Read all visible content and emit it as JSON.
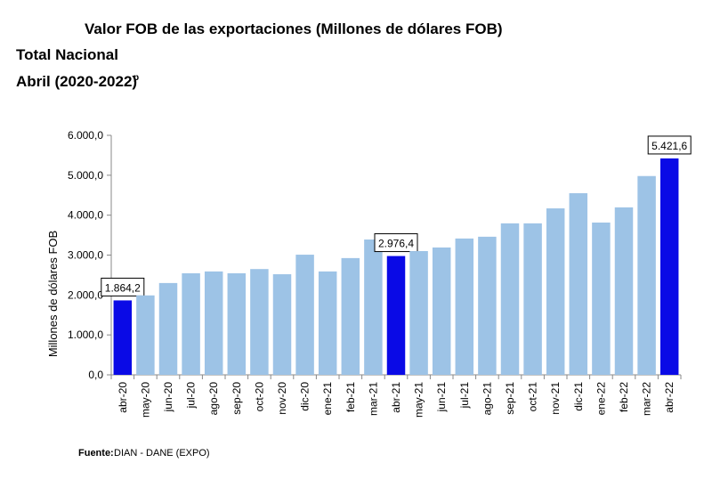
{
  "chart_data": {
    "type": "bar",
    "title": "Valor FOB de las exportaciones (Millones de dólares FOB)",
    "subtitle": "Total Nacional",
    "period": "Abril (2020-2022)",
    "period_mark": "p",
    "y_label": "Millones de dólares FOB",
    "source_label": "Fuente:",
    "source": "DIAN  - DANE (EXPO)",
    "categories": [
      "abr-20",
      "may-20",
      "jun-20",
      "jul-20",
      "ago-20",
      "sep-20",
      "oct-20",
      "nov-20",
      "dic-20",
      "ene-21",
      "feb-21",
      "mar-21",
      "abr-21",
      "may-21",
      "jun-21",
      "jul-21",
      "ago-21",
      "sep-21",
      "oct-21",
      "nov-21",
      "dic-21",
      "ene-22",
      "feb-22",
      "mar-22",
      "abr-22"
    ],
    "values": [
      1864.2,
      1990,
      2300,
      2545,
      2590,
      2545,
      2650,
      2520,
      3010,
      2590,
      2925,
      3390,
      2976.4,
      3100,
      3190,
      3415,
      3460,
      3795,
      3795,
      4170,
      4550,
      3815,
      4195,
      4980,
      5421.6
    ],
    "value_labels": [
      "1.864,2",
      null,
      null,
      null,
      null,
      null,
      null,
      null,
      null,
      null,
      null,
      null,
      "2.976,4",
      null,
      null,
      null,
      null,
      null,
      null,
      null,
      null,
      null,
      null,
      null,
      "5.421,6"
    ],
    "colors": [
      "#0a0ae6",
      "#9dc3e6",
      "#9dc3e6",
      "#9dc3e6",
      "#9dc3e6",
      "#9dc3e6",
      "#9dc3e6",
      "#9dc3e6",
      "#9dc3e6",
      "#9dc3e6",
      "#9dc3e6",
      "#9dc3e6",
      "#0a0ae6",
      "#9dc3e6",
      "#9dc3e6",
      "#9dc3e6",
      "#9dc3e6",
      "#9dc3e6",
      "#9dc3e6",
      "#9dc3e6",
      "#9dc3e6",
      "#9dc3e6",
      "#9dc3e6",
      "#9dc3e6",
      "#0a0ae6"
    ],
    "ylim": [
      0,
      6000
    ],
    "yticks": [
      {
        "value": 0,
        "label": "0,0"
      },
      {
        "value": 1000,
        "label": "1.000,0"
      },
      {
        "value": 2000,
        "label": "2.000,0"
      },
      {
        "value": 3000,
        "label": "3.000,0"
      },
      {
        "value": 4000,
        "label": "4.000,0"
      },
      {
        "value": 5000,
        "label": "5.000,0"
      },
      {
        "value": 6000,
        "label": "6.000,0"
      }
    ],
    "grid": false
  }
}
